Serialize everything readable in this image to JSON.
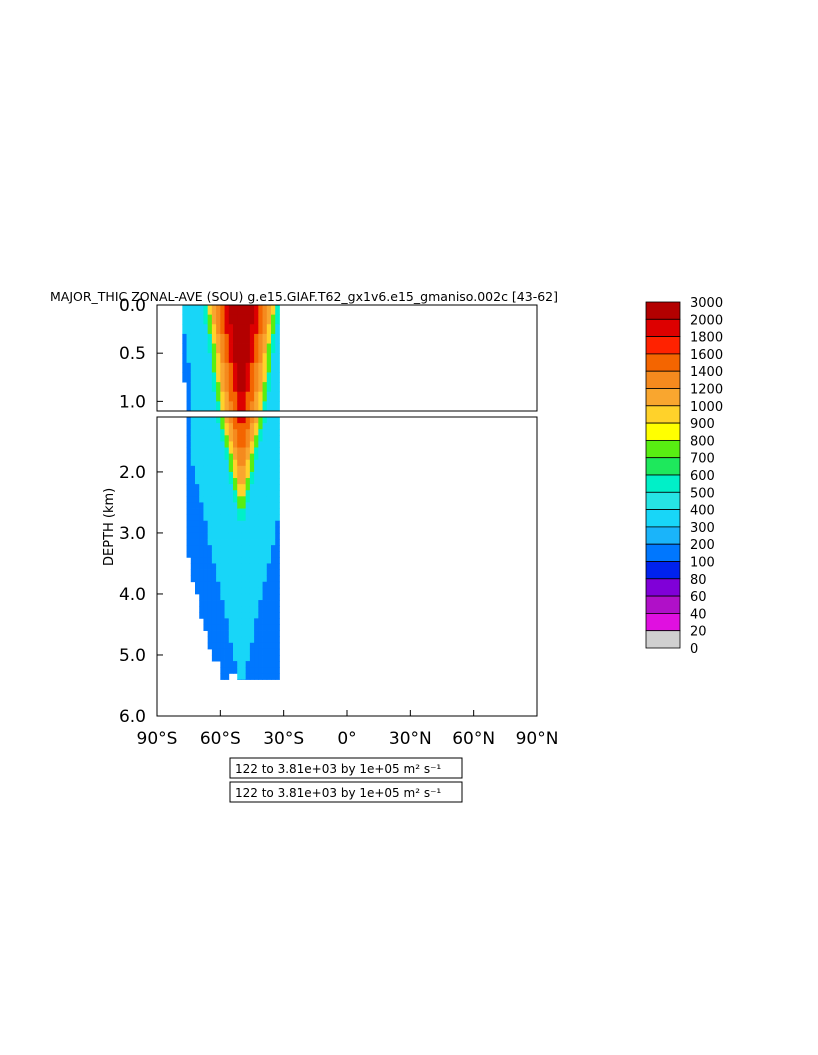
{
  "chart_data": {
    "type": "heatmap",
    "title": "MAJOR_THIC ZONAL-AVE (SOU) g.e15.GIAF.T62_gx1v6.e15_gmaniso.002c [43-62]",
    "ylabel": "DEPTH (km)",
    "xlabel": "",
    "x_ticks": [
      "90°S",
      "60°S",
      "30°S",
      "0°",
      "30°N",
      "60°N",
      "90°N"
    ],
    "x_tick_values": [
      -90,
      -60,
      -30,
      0,
      30,
      60,
      90
    ],
    "upper_panel": {
      "ylim": [
        0,
        1.1
      ],
      "y_ticks": [
        "0.0",
        "0.5",
        "1.0"
      ],
      "y_tick_values": [
        0,
        0.5,
        1.0
      ]
    },
    "lower_panel": {
      "ylim": [
        1.1,
        6.0
      ],
      "y_ticks": [
        "2.0",
        "3.0",
        "4.0",
        "5.0",
        "6.0"
      ],
      "y_tick_values": [
        2,
        3,
        4,
        5,
        6
      ]
    },
    "units": "m² s⁻¹",
    "legend": {
      "placement": "right",
      "levels": [
        "3000",
        "2000",
        "1800",
        "1600",
        "1400",
        "1200",
        "1000",
        "900",
        "800",
        "700",
        "600",
        "500",
        "400",
        "300",
        "200",
        "100",
        "80",
        "60",
        "40",
        "20",
        "0"
      ],
      "colors": [
        "#b30000",
        "#dd0000",
        "#ff2200",
        "#f46500",
        "#f58a1e",
        "#f9a62f",
        "#ffd22a",
        "#ffff00",
        "#58ee12",
        "#1ee85c",
        "#00f0c8",
        "#26e4e4",
        "#18d6f8",
        "#1ab4fa",
        "#0077fe",
        "#0022ee",
        "#8000d8",
        "#b010c8",
        "#e010e0",
        "#d0d0d0",
        "#707070"
      ]
    },
    "profile": {
      "lat": [
        -77,
        -75,
        -73,
        -71,
        -69,
        -67,
        -65,
        -63,
        -61,
        -59,
        -57,
        -55,
        -53,
        -51,
        -49,
        -47,
        -45,
        -43,
        -41,
        -39,
        -37,
        -35,
        -33
      ],
      "bottom_depth_km": [
        0.8,
        3.4,
        3.8,
        4.0,
        4.4,
        4.6,
        4.9,
        5.1,
        5.1,
        5.4,
        5.4,
        5.3,
        5.3,
        5.4,
        5.4,
        5.4,
        5.4,
        5.4,
        5.4,
        5.4,
        5.4,
        5.4,
        5.4
      ],
      "core_lat": -50,
      "core_value": 3000
    },
    "notes": [
      "122 to 3.81e+03 by 1e+05 m² s⁻¹",
      "122 to 3.81e+03 by 1e+05 m² s⁻¹"
    ]
  }
}
